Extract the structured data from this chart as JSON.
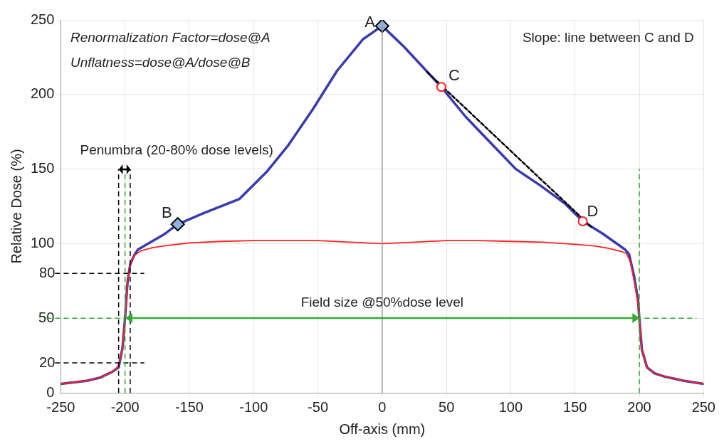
{
  "chart_data": {
    "type": "line",
    "xlabel": "Off-axis (mm)",
    "ylabel": "Relative Dose (%)",
    "xlim": [
      -250,
      250
    ],
    "xticks": [
      -250,
      -200,
      -150,
      -100,
      -50,
      0,
      50,
      100,
      150,
      200,
      250
    ],
    "ylim": [
      0,
      250
    ],
    "yticks": [
      0,
      50,
      100,
      150,
      200,
      250
    ],
    "grid": true,
    "legend": false,
    "series": [
      {
        "color": "#3a3ab0",
        "x": [
          -250,
          -230,
          -220,
          -210,
          -205,
          -202,
          -200,
          -198,
          -196,
          -193,
          -190,
          -180,
          -170,
          -159,
          -140,
          -111,
          -90,
          -73,
          -54,
          -35,
          -15,
          0,
          17,
          31,
          46,
          65,
          85,
          104,
          123,
          142,
          156,
          171,
          189,
          192,
          196,
          199,
          200,
          202,
          206,
          212,
          219,
          235,
          250
        ],
        "values": [
          6,
          8,
          10,
          14,
          17,
          30,
          50,
          75,
          86,
          92,
          96,
          101,
          106,
          113,
          120,
          130,
          148,
          166,
          190,
          216,
          237,
          246,
          232,
          219,
          205,
          185,
          167,
          150,
          139,
          127,
          115,
          107,
          96,
          93,
          78,
          62,
          50,
          29,
          17,
          13,
          11,
          8,
          6
        ]
      },
      {
        "color": "#ff2020",
        "x": [
          -250,
          -230,
          -220,
          -210,
          -205,
          -202,
          -200,
          -198,
          -196,
          -193,
          -188,
          -180,
          -170,
          -150,
          -125,
          -100,
          -75,
          -50,
          -25,
          0,
          25,
          50,
          75,
          100,
          125,
          150,
          165,
          175,
          185,
          190,
          193,
          196,
          199,
          200,
          202,
          206,
          212,
          219,
          235,
          250
        ],
        "values": [
          6,
          8,
          10,
          14,
          18,
          30,
          50,
          75,
          86,
          92,
          95,
          97,
          98.5,
          100.5,
          101.5,
          102,
          102,
          102,
          101,
          100,
          101,
          102,
          102,
          101.5,
          101,
          99.5,
          98.5,
          97,
          95,
          93.5,
          88,
          75,
          60,
          50,
          29,
          17,
          13,
          11,
          8,
          6
        ]
      },
      {
        "type": "line",
        "color": "#000000",
        "line_style": "dashed",
        "x": [
          35,
          163
        ],
        "values": [
          215,
          111
        ]
      },
      {
        "type": "scatter",
        "marker": "diamond",
        "color": "#8fb3e0",
        "x": [
          0,
          -159
        ],
        "values": [
          246,
          113
        ]
      },
      {
        "type": "scatter",
        "marker": "circle",
        "color": "#ff2020",
        "x": [
          46,
          156
        ],
        "values": [
          205,
          115
        ]
      }
    ],
    "ref_lines": [
      {
        "axis": "x",
        "value": 0,
        "color": "#999999",
        "line_style": "solid"
      },
      {
        "axis": "y",
        "value": 80,
        "label": "80",
        "color": "#000000",
        "line_style": "dashed"
      },
      {
        "axis": "y",
        "value": 20,
        "label": "20",
        "color": "#000000",
        "line_style": "dashed"
      },
      {
        "axis": "y",
        "value": 50,
        "color": "#33aa33",
        "line_style": "dashed"
      },
      {
        "axis": "x",
        "value": -205,
        "color": "#000000",
        "line_style": "dashed"
      },
      {
        "axis": "x",
        "value": -196,
        "color": "#000000",
        "line_style": "dashed"
      },
      {
        "axis": "x",
        "value": -200,
        "color": "#33aa33",
        "line_style": "dashed"
      },
      {
        "axis": "x",
        "value": 200,
        "color": "#33aa33",
        "line_style": "dashed"
      }
    ],
    "annotations": [
      "Renormalization Factor=dose@A",
      "Unflatness=dose@A/dose@B",
      "Slope: line between C and D",
      "Penumbra (20-80% dose levels)",
      {
        "text": "A",
        "x": 0,
        "y": 246
      },
      {
        "text": "B",
        "x": -159,
        "y": 113
      },
      {
        "text": "C",
        "x": 46,
        "y": 205
      },
      {
        "text": "D",
        "x": 156,
        "y": 115
      },
      {
        "text": "Field size @50%dose level",
        "x": 0,
        "y": 50
      }
    ]
  }
}
